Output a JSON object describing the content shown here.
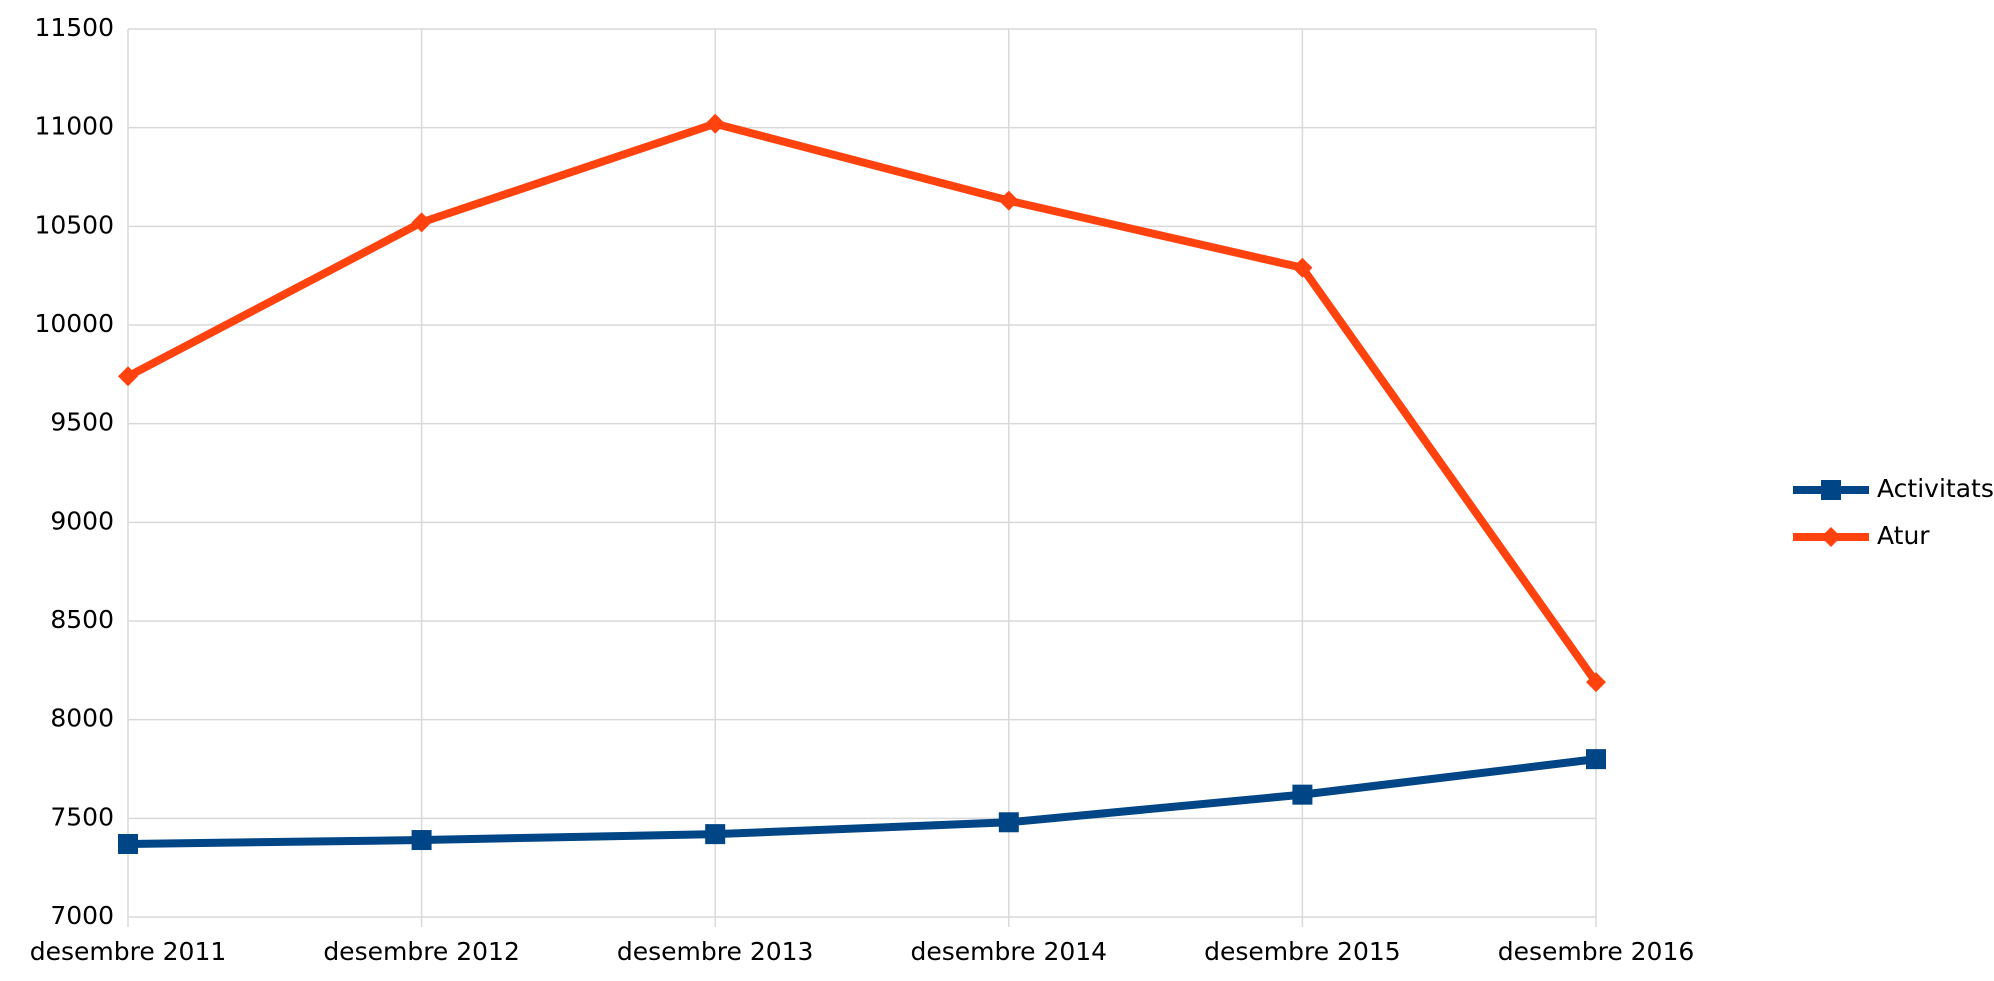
{
  "chart_data": {
    "type": "line",
    "categories": [
      "desembre 2011",
      "desembre 2012",
      "desembre 2013",
      "desembre 2014",
      "desembre 2015",
      "desembre 2016"
    ],
    "series": [
      {
        "name": "Activitats",
        "color": "#004586",
        "marker": "square",
        "values": [
          7370,
          7390,
          7420,
          7480,
          7620,
          7800
        ]
      },
      {
        "name": "Atur",
        "color": "#ff420e",
        "marker": "diamond",
        "values": [
          9740,
          10520,
          11020,
          10630,
          10290,
          8190
        ]
      }
    ],
    "ylim": [
      7000,
      11500
    ],
    "yticks": [
      7000,
      7500,
      8000,
      8500,
      9000,
      9500,
      10000,
      10500,
      11000,
      11500
    ],
    "grid": true,
    "legend": "right"
  }
}
